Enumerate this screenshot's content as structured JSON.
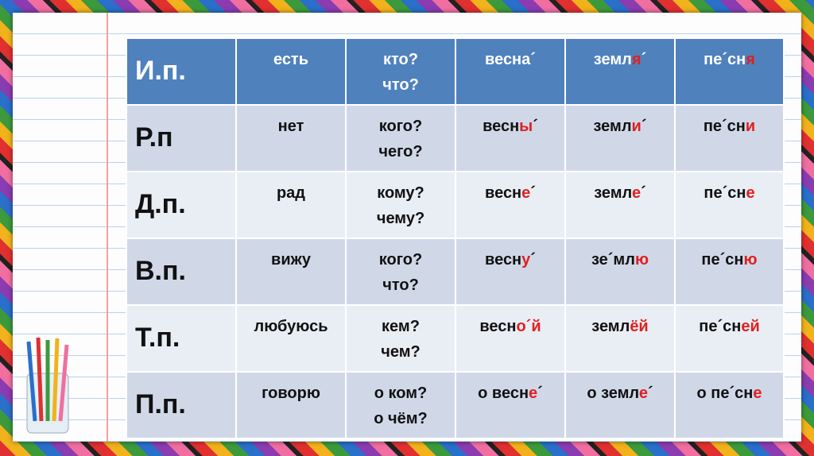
{
  "table": {
    "rows": [
      [
        "И.п.",
        "есть",
        [
          "кто?",
          "что?"
        ],
        {
          "segments": [
            {
              "text": "весна´"
            }
          ]
        },
        {
          "segments": [
            {
              "text": "земл"
            },
            {
              "text": "я",
              "red": true
            },
            {
              "text": "´"
            }
          ]
        },
        {
          "segments": [
            {
              "text": "пе´сн"
            },
            {
              "text": "я",
              "red": true
            }
          ]
        }
      ],
      [
        "Р.п",
        "нет",
        [
          "кого?",
          "чего?"
        ],
        {
          "segments": [
            {
              "text": "весн"
            },
            {
              "text": "ы",
              "red": true
            },
            {
              "text": "´"
            }
          ]
        },
        {
          "segments": [
            {
              "text": "земл"
            },
            {
              "text": "и",
              "red": true
            },
            {
              "text": "´"
            }
          ]
        },
        {
          "segments": [
            {
              "text": "пе´сн"
            },
            {
              "text": "и",
              "red": true
            }
          ]
        }
      ],
      [
        "Д.п.",
        "рад",
        [
          "кому?",
          "чему?"
        ],
        {
          "segments": [
            {
              "text": "весн"
            },
            {
              "text": "е",
              "red": true
            },
            {
              "text": "´"
            }
          ]
        },
        {
          "segments": [
            {
              "text": "земл"
            },
            {
              "text": "е",
              "red": true
            },
            {
              "text": "´"
            }
          ]
        },
        {
          "segments": [
            {
              "text": "пе´сн"
            },
            {
              "text": "е",
              "red": true
            }
          ]
        }
      ],
      [
        "В.п.",
        "вижу",
        [
          "кого?",
          "что?"
        ],
        {
          "segments": [
            {
              "text": "весн"
            },
            {
              "text": "у",
              "red": true
            },
            {
              "text": "´"
            }
          ]
        },
        {
          "segments": [
            {
              "text": "зе´мл"
            },
            {
              "text": "ю",
              "red": true
            }
          ]
        },
        {
          "segments": [
            {
              "text": "пе´сн"
            },
            {
              "text": "ю",
              "red": true
            }
          ]
        }
      ],
      [
        "Т.п.",
        "любуюсь",
        [
          "кем?",
          "чем?"
        ],
        {
          "segments": [
            {
              "text": "весн"
            },
            {
              "text": "о´й",
              "red": true
            }
          ]
        },
        {
          "segments": [
            {
              "text": "земл"
            },
            {
              "text": "ёй",
              "red": true
            }
          ]
        },
        {
          "segments": [
            {
              "text": "пе´сн"
            },
            {
              "text": "ей",
              "red": true
            }
          ]
        }
      ],
      [
        "П.п.",
        "говорю",
        [
          "о ком?",
          "о чём?"
        ],
        {
          "segments": [
            {
              "text": "о весн"
            },
            {
              "text": "е",
              "red": true
            },
            {
              "text": "´"
            }
          ]
        },
        {
          "segments": [
            {
              "text": "о земл"
            },
            {
              "text": "е",
              "red": true
            },
            {
              "text": "´"
            }
          ]
        },
        {
          "segments": [
            {
              "text": "о пе´сн"
            },
            {
              "text": "е",
              "red": true
            }
          ]
        }
      ]
    ]
  }
}
